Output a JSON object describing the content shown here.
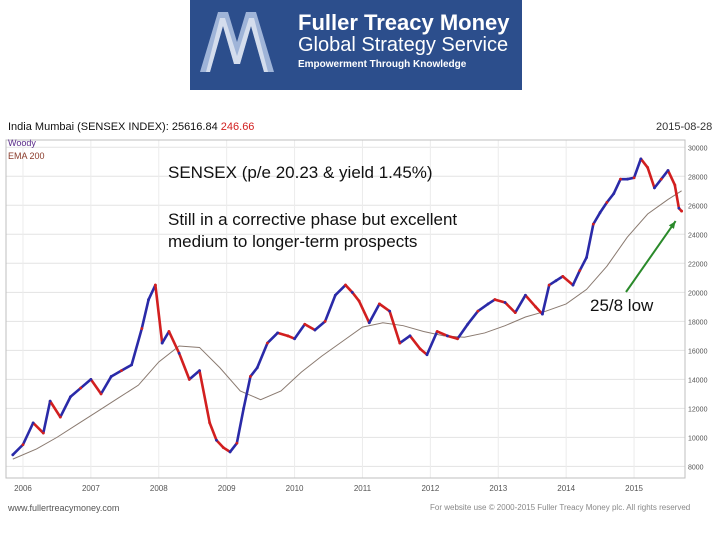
{
  "header": {
    "brand_line1": "Fuller Treacy Money",
    "brand_line2": "Global Strategy Service",
    "tagline": "Empowerment Through Knowledge"
  },
  "chart_header": {
    "title": "India Mumbai (SENSEX INDEX): 25616.84",
    "change": "246.66",
    "date": "2015-08-28",
    "legend_1": "Woody",
    "legend_2": "EMA 200"
  },
  "annotations": {
    "headline": "SENSEX (p/e 20.23 & yield 1.45%)",
    "body_line1": "Still in a corrective phase but excellent",
    "body_line2": "medium to longer-term prospects",
    "low_label": "25/8 low"
  },
  "footer": {
    "left": "www.fullertreacymoney.com",
    "right": "For website use © 2000-2015 Fuller Treacy Money plc. All rights reserved"
  },
  "colors": {
    "brand_bg": "#2c4e8c",
    "up_bar": "#2a2aa8",
    "down_bar": "#d21f1f",
    "ema_line": "#8a7a70",
    "arrow": "#2a8a2a"
  },
  "chart_data": {
    "type": "line",
    "title": "India Mumbai (SENSEX INDEX): 25616.84",
    "x_ticks": [
      "2006",
      "2007",
      "2008",
      "2009",
      "2010",
      "2011",
      "2012",
      "2013",
      "2014",
      "2015"
    ],
    "y_ticks": [
      8000,
      10000,
      12000,
      14000,
      16000,
      18000,
      20000,
      22000,
      24000,
      26000,
      28000,
      30000
    ],
    "ylim": [
      7200,
      30500
    ],
    "xlim": [
      2005.75,
      2015.75
    ],
    "series": [
      {
        "name": "Woody",
        "x": [
          2005.85,
          2006.0,
          2006.15,
          2006.3,
          2006.4,
          2006.55,
          2006.7,
          2006.85,
          2007.0,
          2007.15,
          2007.3,
          2007.45,
          2007.6,
          2007.75,
          2007.85,
          2007.95,
          2008.05,
          2008.15,
          2008.3,
          2008.45,
          2008.6,
          2008.75,
          2008.85,
          2008.95,
          2009.05,
          2009.15,
          2009.25,
          2009.35,
          2009.45,
          2009.6,
          2009.75,
          2009.9,
          2010.0,
          2010.15,
          2010.3,
          2010.45,
          2010.6,
          2010.75,
          2010.85,
          2010.95,
          2011.1,
          2011.25,
          2011.4,
          2011.55,
          2011.7,
          2011.85,
          2011.95,
          2012.1,
          2012.25,
          2012.4,
          2012.55,
          2012.7,
          2012.85,
          2012.95,
          2013.1,
          2013.25,
          2013.4,
          2013.55,
          2013.65,
          2013.75,
          2013.85,
          2013.95,
          2014.1,
          2014.2,
          2014.3,
          2014.4,
          2014.5,
          2014.6,
          2014.7,
          2014.8,
          2014.9,
          2015.0,
          2015.1,
          2015.2,
          2015.3,
          2015.4,
          2015.5,
          2015.6,
          2015.66,
          2015.7
        ],
        "values": [
          8800,
          9500,
          11000,
          10300,
          12500,
          11400,
          12800,
          13400,
          14000,
          13000,
          14200,
          14600,
          15000,
          17500,
          19500,
          20500,
          16500,
          17300,
          15800,
          14000,
          14600,
          11000,
          9800,
          9300,
          9000,
          9600,
          12000,
          14200,
          14800,
          16500,
          17200,
          17000,
          16800,
          17800,
          17400,
          18000,
          19800,
          20500,
          20000,
          19400,
          17900,
          19200,
          18700,
          16500,
          17000,
          16100,
          15700,
          17300,
          17000,
          16800,
          17800,
          18700,
          19200,
          19500,
          19300,
          18600,
          19800,
          19000,
          18500,
          20500,
          20800,
          21100,
          20500,
          21500,
          22400,
          24700,
          25500,
          26200,
          26800,
          27800,
          27800,
          27900,
          29200,
          28600,
          27200,
          27800,
          28400,
          27400,
          25800,
          25600
        ]
      },
      {
        "name": "EMA 200",
        "x": [
          2005.85,
          2006.2,
          2006.5,
          2006.8,
          2007.1,
          2007.4,
          2007.7,
          2008.0,
          2008.3,
          2008.6,
          2008.9,
          2009.2,
          2009.5,
          2009.8,
          2010.1,
          2010.4,
          2010.7,
          2011.0,
          2011.3,
          2011.6,
          2011.9,
          2012.2,
          2012.5,
          2012.8,
          2013.1,
          2013.4,
          2013.7,
          2014.0,
          2014.3,
          2014.6,
          2014.9,
          2015.2,
          2015.5,
          2015.7
        ],
        "values": [
          8500,
          9200,
          10000,
          10900,
          11800,
          12700,
          13600,
          15200,
          16300,
          16200,
          14800,
          13200,
          12600,
          13200,
          14500,
          15600,
          16600,
          17600,
          17900,
          17700,
          17300,
          17000,
          16900,
          17200,
          17700,
          18300,
          18700,
          19200,
          20200,
          21800,
          23800,
          25400,
          26400,
          27000
        ]
      }
    ]
  }
}
